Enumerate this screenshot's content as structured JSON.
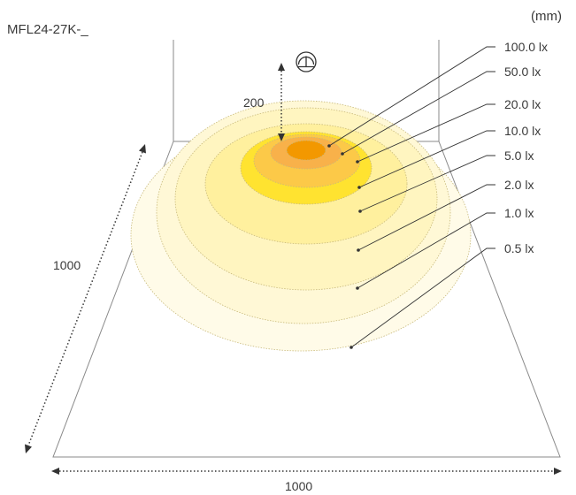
{
  "model": "MFL24-27K-_",
  "unit": "(mm)",
  "dimensions": {
    "mount_height": "200",
    "depth": "1000",
    "width": "1000"
  },
  "fixture_icon": "downlight-fixture-icon",
  "illuminance_levels": [
    {
      "label": "100.0 lx",
      "color": "#F39800"
    },
    {
      "label": "50.0 lx",
      "color": "#F8B14A"
    },
    {
      "label": "20.0 lx",
      "color": "#FCC948"
    },
    {
      "label": "10.0 lx",
      "color": "#FFE330"
    },
    {
      "label": "5.0 lx",
      "color": "#FFF09E"
    },
    {
      "label": "2.0 lx",
      "color": "#FFF5C0"
    },
    {
      "label": "1.0 lx",
      "color": "#FFF8D6"
    },
    {
      "label": "0.5 lx",
      "color": "#FFFBE8"
    }
  ],
  "colors": {
    "line": "#555555",
    "contour_outline": "#C8B97A"
  }
}
